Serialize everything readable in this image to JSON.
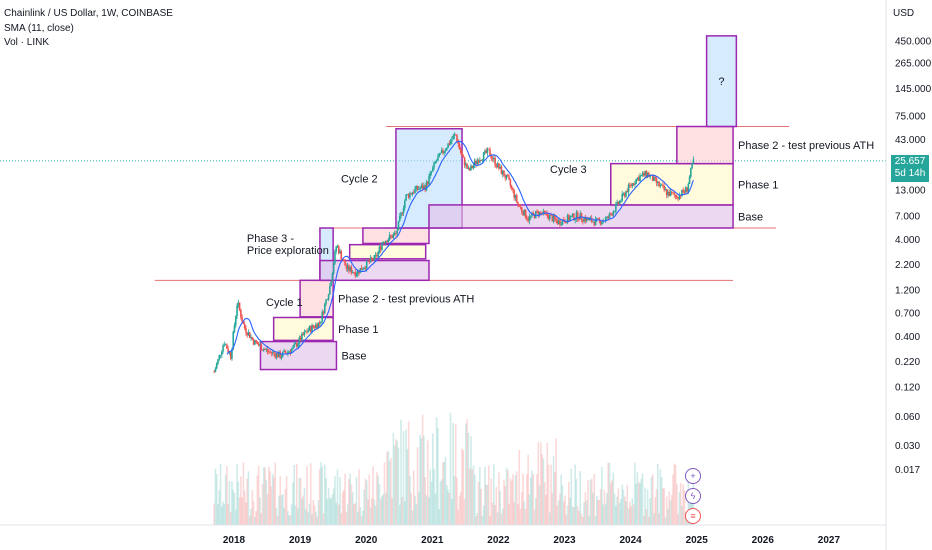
{
  "header": {
    "symbol": "Chainlink / US Dollar, 1W, COINBASE",
    "indicator": "SMA (11, close)",
    "volume": "Vol · LINK"
  },
  "axis": {
    "currency": "USD",
    "price_badge": {
      "value": "25.657",
      "countdown": "5d 14h"
    }
  },
  "colors": {
    "up": "#26a69a",
    "down": "#ef5350",
    "sma": "#2962ff",
    "box_border": "#9c27b0",
    "level_line": "#e57373"
  },
  "chart_data": {
    "type": "candlestick",
    "scale": "log",
    "y_ticks": [
      0.017,
      0.03,
      0.06,
      0.12,
      0.22,
      0.4,
      0.7,
      1.2,
      2.2,
      4.0,
      7.0,
      13.0,
      25.0,
      43.0,
      75.0,
      145.0,
      265.0,
      450.0
    ],
    "y_tick_labels": [
      "0.017",
      "0.030",
      "0.060",
      "0.120",
      "0.220",
      "0.400",
      "0.700",
      "1.200",
      "2.200",
      "4.000",
      "7.000",
      "13.000",
      "",
      "43.000",
      "75.000",
      "145.000",
      "265.000",
      "450.000"
    ],
    "x_ticks": [
      "2018",
      "2019",
      "2020",
      "2021",
      "2022",
      "2023",
      "2024",
      "2025",
      "2026",
      "2027"
    ],
    "price_path": [
      [
        2017.7,
        0.17
      ],
      [
        2017.85,
        0.35
      ],
      [
        2017.95,
        0.25
      ],
      [
        2018.05,
        0.9
      ],
      [
        2018.15,
        0.5
      ],
      [
        2018.3,
        0.35
      ],
      [
        2018.5,
        0.28
      ],
      [
        2018.7,
        0.25
      ],
      [
        2018.9,
        0.3
      ],
      [
        2019.1,
        0.45
      ],
      [
        2019.3,
        0.55
      ],
      [
        2019.45,
        1.3
      ],
      [
        2019.55,
        3.5
      ],
      [
        2019.7,
        2.0
      ],
      [
        2019.85,
        1.8
      ],
      [
        2020.0,
        2.2
      ],
      [
        2020.15,
        2.6
      ],
      [
        2020.25,
        3.8
      ],
      [
        2020.45,
        4.5
      ],
      [
        2020.6,
        11
      ],
      [
        2020.75,
        13
      ],
      [
        2020.9,
        14
      ],
      [
        2021.05,
        25
      ],
      [
        2021.2,
        35
      ],
      [
        2021.35,
        48
      ],
      [
        2021.45,
        28
      ],
      [
        2021.55,
        20
      ],
      [
        2021.7,
        27
      ],
      [
        2021.85,
        32
      ],
      [
        2022.0,
        22
      ],
      [
        2022.15,
        16
      ],
      [
        2022.3,
        9
      ],
      [
        2022.45,
        6.5
      ],
      [
        2022.6,
        7.5
      ],
      [
        2022.75,
        7.0
      ],
      [
        2022.9,
        6.0
      ],
      [
        2023.05,
        6.5
      ],
      [
        2023.2,
        7.0
      ],
      [
        2023.35,
        6.3
      ],
      [
        2023.5,
        6.0
      ],
      [
        2023.65,
        6.5
      ],
      [
        2023.8,
        9
      ],
      [
        2023.95,
        13
      ],
      [
        2024.1,
        17
      ],
      [
        2024.25,
        19
      ],
      [
        2024.4,
        15
      ],
      [
        2024.55,
        12
      ],
      [
        2024.7,
        11
      ],
      [
        2024.85,
        13
      ],
      [
        2024.95,
        25.657
      ]
    ],
    "annotations": [
      {
        "label": "Base",
        "kind": "box",
        "fill": "#e1bee7",
        "x": [
          2018.4,
          2019.55
        ],
        "y": [
          0.18,
          0.35
        ]
      },
      {
        "label": "Phase 1",
        "kind": "box",
        "fill": "#fff9c4",
        "x": [
          2018.6,
          2019.5
        ],
        "y": [
          0.36,
          0.62
        ]
      },
      {
        "label": "Phase 2 - test previous ATH",
        "kind": "box",
        "fill": "#ffcdd2",
        "x": [
          2019.0,
          2019.5
        ],
        "y": [
          0.63,
          1.5
        ]
      },
      {
        "label": "Phase 3 -\nPrice exploration",
        "kind": "box",
        "fill": "#bbdefb",
        "x": [
          2019.3,
          2019.5
        ],
        "y": [
          1.5,
          5.2
        ]
      },
      {
        "label": "",
        "kind": "box",
        "fill": "#e1bee7",
        "x": [
          2019.3,
          2020.95
        ],
        "y": [
          1.5,
          2.4
        ]
      },
      {
        "label": "",
        "kind": "box",
        "fill": "#fff9c4",
        "x": [
          2019.75,
          2020.9
        ],
        "y": [
          2.5,
          3.5
        ]
      },
      {
        "label": "",
        "kind": "box",
        "fill": "#ffcdd2",
        "x": [
          2019.95,
          2020.95
        ],
        "y": [
          3.6,
          5.2
        ]
      },
      {
        "label": "Cycle 2",
        "kind": "box",
        "fill": "#bbdefb",
        "x": [
          2020.45,
          2021.45
        ],
        "y": [
          5.2,
          55
        ]
      },
      {
        "label": "Base",
        "kind": "box",
        "fill": "#e1bee7",
        "x": [
          2020.95,
          2025.55
        ],
        "y": [
          5.2,
          9.0
        ]
      },
      {
        "label": "Phase 1",
        "kind": "box",
        "fill": "#fff9c4",
        "x": [
          2023.7,
          2025.55
        ],
        "y": [
          9.0,
          24
        ]
      },
      {
        "label": "Phase 2 - test previous ATH",
        "kind": "box",
        "fill": "#ffcdd2",
        "x": [
          2024.7,
          2025.55
        ],
        "y": [
          24,
          58
        ]
      },
      {
        "label": "?",
        "kind": "box",
        "fill": "#bbdefb",
        "x": [
          2025.15,
          2025.6
        ],
        "y": [
          58,
          500
        ]
      }
    ],
    "text_labels": [
      "Cycle 1",
      "Cycle 2",
      "Cycle 3"
    ],
    "levels": [
      {
        "y": 1.5,
        "x": [
          2016.8,
          2025.55
        ]
      },
      {
        "y": 5.2,
        "x": [
          2019.45,
          2026.2
        ]
      },
      {
        "y": 58,
        "x": [
          2020.3,
          2026.4
        ]
      }
    ]
  }
}
